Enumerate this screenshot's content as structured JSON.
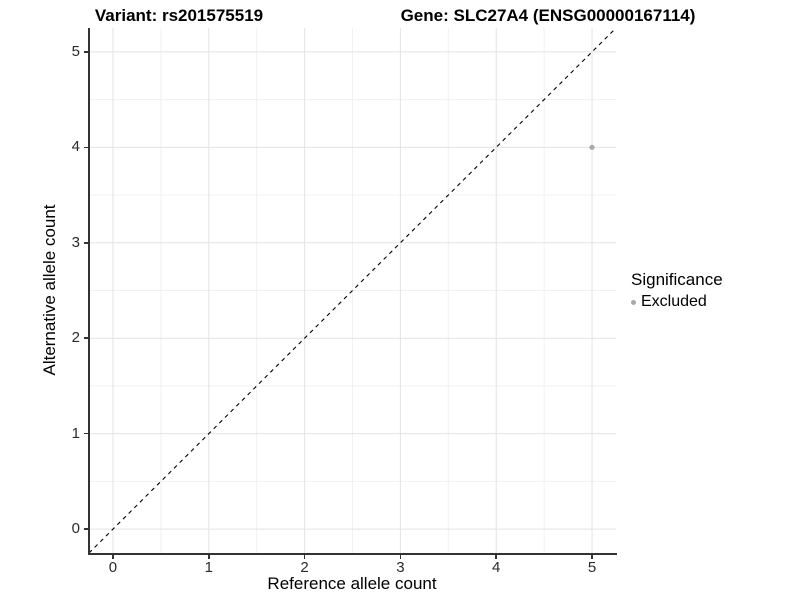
{
  "chart_data": {
    "type": "scatter",
    "title_left": "Variant: rs201575519",
    "title_right": "Gene: SLC27A4 (ENSG00000167114)",
    "xlabel": "Reference allele count",
    "ylabel": "Alternative allele count",
    "xlim": [
      -0.25,
      5.25
    ],
    "ylim": [
      -0.25,
      5.25
    ],
    "x_ticks": [
      0,
      1,
      2,
      3,
      4,
      5
    ],
    "y_ticks": [
      0,
      1,
      2,
      3,
      4,
      5
    ],
    "x_tick_labels": [
      "0",
      "1",
      "2",
      "3",
      "4",
      "5"
    ],
    "y_tick_labels": [
      "0",
      "1",
      "2",
      "3",
      "4",
      "5"
    ],
    "grid": true,
    "grid_minor": true,
    "points": [
      {
        "x": 5,
        "y": 4,
        "series": "Excluded"
      }
    ],
    "reference_line": {
      "kind": "identity",
      "style": "dashed",
      "color": "#000000"
    },
    "legend": {
      "title": "Significance",
      "position": "right",
      "items": [
        {
          "label": "Excluded",
          "color": "#A9A9A9"
        }
      ]
    },
    "colors": {
      "point": "#A9A9A9",
      "grid_major": "#E3E3E3",
      "grid_minor": "#F1F1F1",
      "axis_line": "#333333",
      "background": "#FFFFFF"
    }
  }
}
